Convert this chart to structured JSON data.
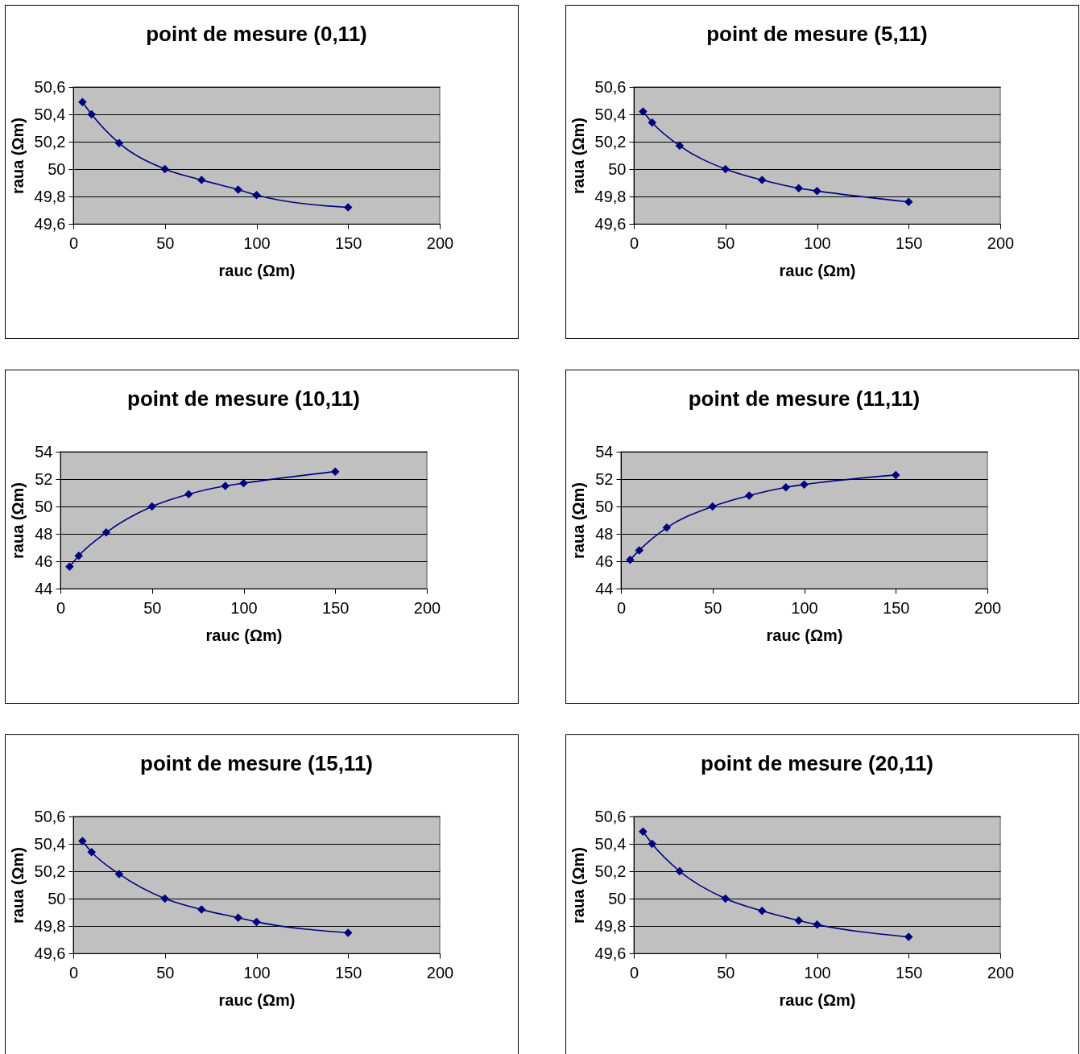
{
  "chart_data": [
    {
      "type": "line",
      "title": "point de mesure (0,11)",
      "xlabel": "rauc (Ωm)",
      "ylabel": "raua (Ωm)",
      "x": [
        5,
        10,
        25,
        50,
        70,
        90,
        100,
        150
      ],
      "series": [
        {
          "color": "#000080",
          "values": [
            50.49,
            50.4,
            50.19,
            50.0,
            49.92,
            49.85,
            49.81,
            49.72
          ]
        }
      ],
      "xlim": [
        0,
        200
      ],
      "xticks": [
        0,
        50,
        100,
        150,
        200
      ],
      "ylim": [
        49.6,
        50.6
      ],
      "yticks": [
        {
          "value": 49.6,
          "label": "49,6"
        },
        {
          "value": 49.8,
          "label": "49,8"
        },
        50,
        {
          "value": 50.2,
          "label": "50,2"
        },
        {
          "value": 50.4,
          "label": "50,4"
        },
        {
          "value": 50.6,
          "label": "50,6"
        }
      ],
      "grid": "y",
      "marker": "diamond",
      "line_style": "solid"
    },
    {
      "type": "line",
      "title": "point de mesure (5,11)",
      "xlabel": "rauc (Ωm)",
      "ylabel": "raua (Ωm)",
      "x": [
        5,
        10,
        25,
        50,
        70,
        90,
        100,
        150
      ],
      "series": [
        {
          "color": "#000080",
          "values": [
            50.42,
            50.34,
            50.17,
            50.0,
            49.92,
            49.86,
            49.84,
            49.76
          ]
        }
      ],
      "xlim": [
        0,
        200
      ],
      "xticks": [
        0,
        50,
        100,
        150,
        200
      ],
      "ylim": [
        49.6,
        50.6
      ],
      "yticks": [
        {
          "value": 49.6,
          "label": "49,6"
        },
        {
          "value": 49.8,
          "label": "49,8"
        },
        50,
        {
          "value": 50.2,
          "label": "50,2"
        },
        {
          "value": 50.4,
          "label": "50,4"
        },
        {
          "value": 50.6,
          "label": "50,6"
        }
      ],
      "grid": "y",
      "marker": "diamond",
      "line_style": "solid"
    },
    {
      "type": "line",
      "title": "point de mesure (10,11)",
      "xlabel": "rauc (Ωm)",
      "ylabel": "raua (Ωm)",
      "x": [
        5,
        10,
        25,
        50,
        70,
        90,
        100,
        150
      ],
      "series": [
        {
          "color": "#000080",
          "values": [
            45.6,
            46.4,
            48.1,
            50.0,
            50.9,
            51.5,
            51.7,
            52.55
          ]
        }
      ],
      "xlim": [
        0,
        200
      ],
      "xticks": [
        0,
        50,
        100,
        150,
        200
      ],
      "ylim": [
        44,
        54
      ],
      "yticks": [
        44,
        46,
        48,
        50,
        52,
        54
      ],
      "grid": "y",
      "marker": "diamond",
      "line_style": "solid"
    },
    {
      "type": "line",
      "title": "point de mesure (11,11)",
      "xlabel": "rauc (Ωm)",
      "ylabel": "raua (Ωm)",
      "x": [
        5,
        10,
        25,
        50,
        70,
        90,
        100,
        150
      ],
      "series": [
        {
          "color": "#000080",
          "values": [
            46.1,
            46.8,
            48.45,
            50.0,
            50.8,
            51.4,
            51.6,
            52.3
          ]
        }
      ],
      "xlim": [
        0,
        200
      ],
      "xticks": [
        0,
        50,
        100,
        150,
        200
      ],
      "ylim": [
        44,
        54
      ],
      "yticks": [
        44,
        46,
        48,
        50,
        52,
        54
      ],
      "grid": "y",
      "marker": "diamond",
      "line_style": "solid"
    },
    {
      "type": "line",
      "title": "point de mesure (15,11)",
      "xlabel": "rauc (Ωm)",
      "ylabel": "raua (Ωm)",
      "x": [
        5,
        10,
        25,
        50,
        70,
        90,
        100,
        150
      ],
      "series": [
        {
          "color": "#000080",
          "values": [
            50.42,
            50.34,
            50.18,
            50.0,
            49.92,
            49.86,
            49.83,
            49.75
          ]
        }
      ],
      "xlim": [
        0,
        200
      ],
      "xticks": [
        0,
        50,
        100,
        150,
        200
      ],
      "ylim": [
        49.6,
        50.6
      ],
      "yticks": [
        {
          "value": 49.6,
          "label": "49,6"
        },
        {
          "value": 49.8,
          "label": "49,8"
        },
        50,
        {
          "value": 50.2,
          "label": "50,2"
        },
        {
          "value": 50.4,
          "label": "50,4"
        },
        {
          "value": 50.6,
          "label": "50,6"
        }
      ],
      "grid": "y",
      "marker": "diamond",
      "line_style": "solid"
    },
    {
      "type": "line",
      "title": "point de mesure (20,11)",
      "xlabel": "rauc (Ωm)",
      "ylabel": "raua (Ωm)",
      "x": [
        5,
        10,
        25,
        50,
        70,
        90,
        100,
        150
      ],
      "series": [
        {
          "color": "#000080",
          "values": [
            50.49,
            50.4,
            50.2,
            50.0,
            49.91,
            49.84,
            49.81,
            49.72
          ]
        }
      ],
      "xlim": [
        0,
        200
      ],
      "xticks": [
        0,
        50,
        100,
        150,
        200
      ],
      "ylim": [
        49.6,
        50.6
      ],
      "yticks": [
        {
          "value": 49.6,
          "label": "49,6"
        },
        {
          "value": 49.8,
          "label": "49,8"
        },
        50,
        {
          "value": 50.2,
          "label": "50,2"
        },
        {
          "value": 50.4,
          "label": "50,4"
        },
        {
          "value": 50.6,
          "label": "50,6"
        }
      ],
      "grid": "y",
      "marker": "diamond",
      "line_style": "solid"
    }
  ]
}
